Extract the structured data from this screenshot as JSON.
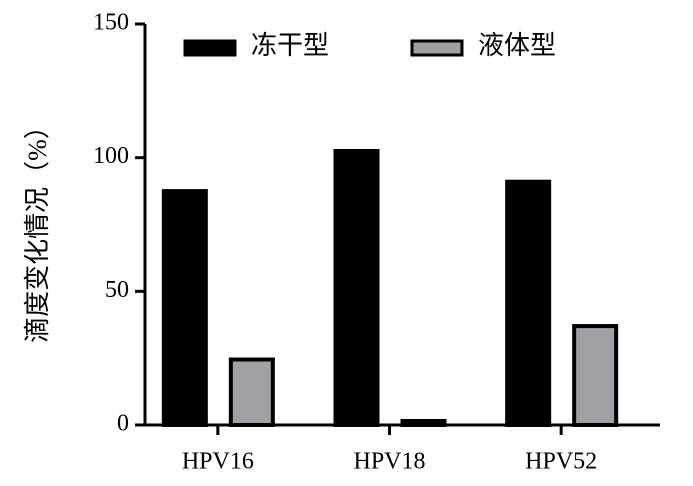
{
  "chart_data": {
    "type": "bar",
    "categories": [
      "HPV16",
      "HPV18",
      "HPV52"
    ],
    "y_label": "滴度变化情况（%）",
    "series": [
      {
        "name": "冻干型",
        "color": "#000000",
        "values": [
          87.5,
          102.5,
          91
        ]
      },
      {
        "name": "液体型",
        "color": "#a0a0a4",
        "values": [
          24.5,
          1.5,
          37
        ]
      }
    ],
    "ylim": [
      0,
      150
    ],
    "yticks": [
      0,
      50,
      100,
      150
    ],
    "grid": false,
    "legend": "top"
  }
}
